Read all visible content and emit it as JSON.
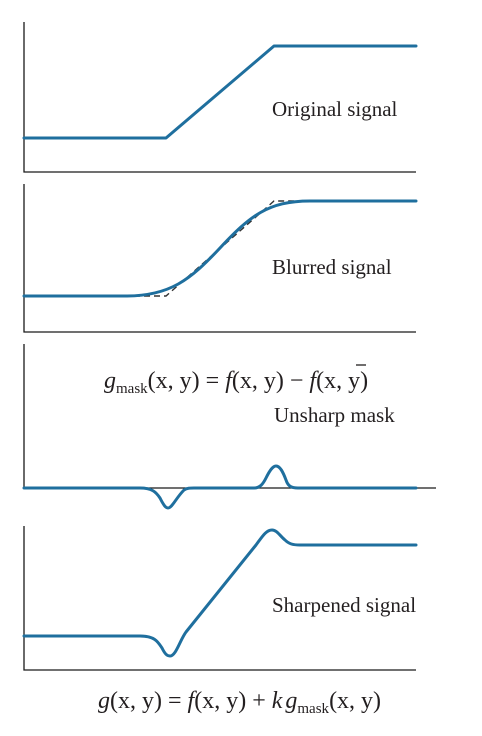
{
  "colors": {
    "signal": "#1f6f9e",
    "axis": "#1a1a1a",
    "text": "#231f20"
  },
  "panels": {
    "original": {
      "label": "Original signal"
    },
    "blurred": {
      "label": "Blurred signal"
    },
    "mask": {
      "label": "Unsharp mask"
    },
    "sharpened": {
      "label": "Sharpened signal"
    }
  },
  "equations": {
    "mask": {
      "g": "g",
      "sub": "mask",
      "args": "(x, y) = ",
      "f": "f",
      "args2": "(x, y) − ",
      "fbar": "f",
      "args3": "(x, y)"
    },
    "sharpened": {
      "g": "g",
      "args": "(x, y) = ",
      "f": "f",
      "args2": "(x, y) + ",
      "k": "k",
      "g2": "g",
      "sub": "mask",
      "args3": "(x, y)"
    }
  }
}
